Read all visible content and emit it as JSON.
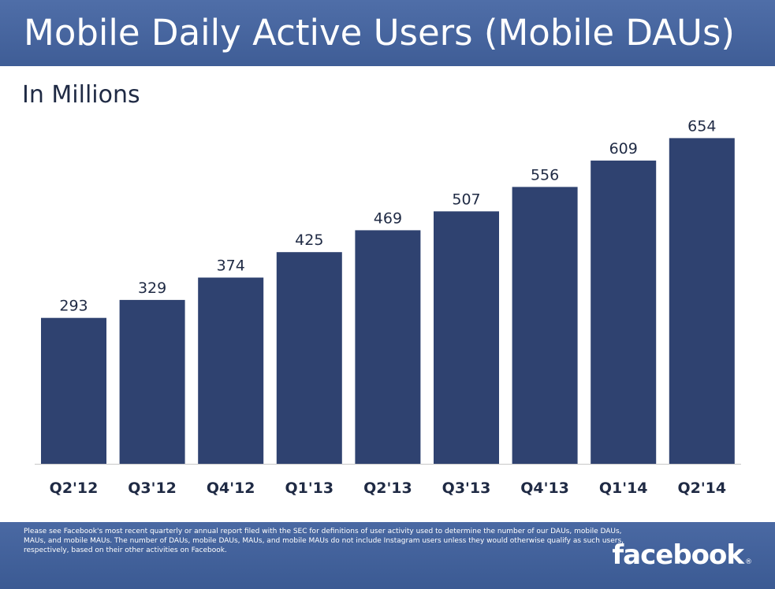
{
  "header": {
    "title": "Mobile Daily Active Users (Mobile DAUs)"
  },
  "chart_data": {
    "type": "bar",
    "title": "Mobile Daily Active Users (Mobile DAUs)",
    "subtitle": "In Millions",
    "categories": [
      "Q2'12",
      "Q3'12",
      "Q4'12",
      "Q1'13",
      "Q2'13",
      "Q3'13",
      "Q4'13",
      "Q1'14",
      "Q2'14"
    ],
    "values": [
      293,
      329,
      374,
      425,
      469,
      507,
      556,
      609,
      654
    ],
    "ylim": [
      0,
      700
    ],
    "grid": false,
    "legend": "none",
    "bar_color": "#2f4270"
  },
  "footer": {
    "disclaimer": "Please see Facebook's most recent quarterly or annual report filed with the SEC for definitions of user activity used to determine the number of our DAUs, mobile DAUs, MAUs, and mobile MAUs. The number of DAUs, mobile DAUs, MAUs, and mobile MAUs do not include Instagram users unless they would otherwise qualify as such users, respectively, based on their other activities on Facebook.",
    "logo_text": "facebook",
    "logo_mark": "®"
  }
}
